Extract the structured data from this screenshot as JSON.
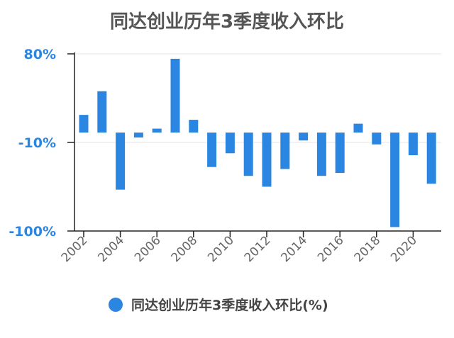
{
  "chart_data": {
    "type": "bar",
    "title": "同达创业历年3季度收入环比",
    "xlabel": "",
    "ylabel": "",
    "ylim": [
      -100,
      80
    ],
    "y_ticks": [
      {
        "value": 80,
        "label": "80%"
      },
      {
        "value": -10,
        "label": "-10%"
      },
      {
        "value": -100,
        "label": "-100%"
      }
    ],
    "categories": [
      "2002",
      "2003",
      "2004",
      "2005",
      "2006",
      "2007",
      "2008",
      "2009",
      "2010",
      "2011",
      "2012",
      "2013",
      "2014",
      "2015",
      "2016",
      "2017",
      "2018",
      "2019",
      "2020",
      "2021"
    ],
    "x_tick_labels": [
      "2002",
      "2004",
      "2006",
      "2008",
      "2010",
      "2012",
      "2014",
      "2016",
      "2018",
      "2020"
    ],
    "series": [
      {
        "name": "同达创业历年3季度收入环比(%)",
        "values": [
          18,
          42,
          -58,
          -5,
          4,
          75,
          13,
          -35,
          -21,
          -44,
          -55,
          -37,
          -8,
          -44,
          -41,
          9,
          -12,
          -96,
          -23,
          -52
        ],
        "color": "#2b86e2"
      }
    ],
    "grid": false,
    "legend": "bottom"
  }
}
